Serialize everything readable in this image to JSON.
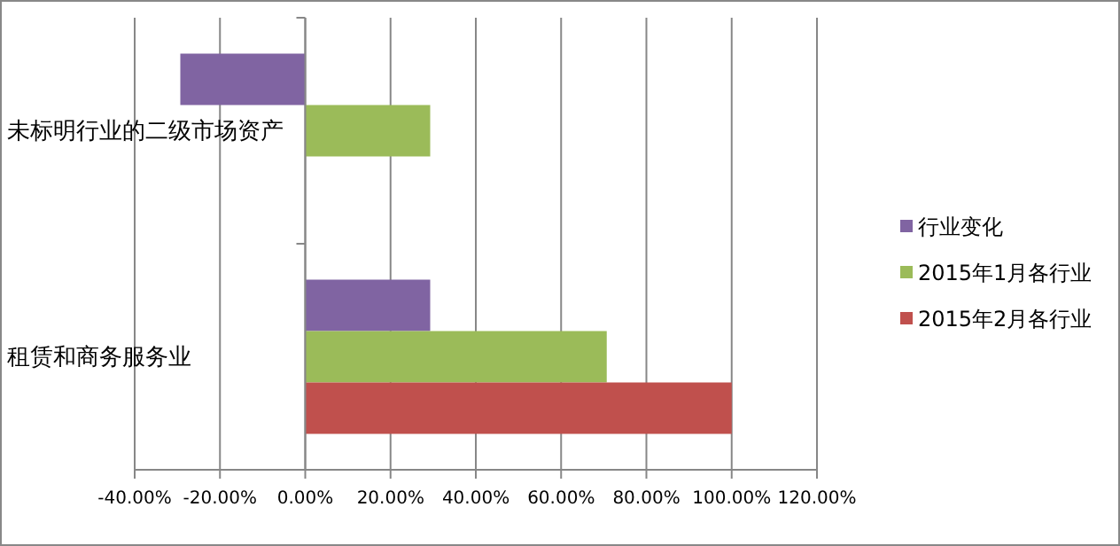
{
  "chart_data": {
    "type": "bar",
    "orientation": "horizontal",
    "categories": [
      "未标明行业的二级市场资产",
      "租赁和商务服务业"
    ],
    "series": [
      {
        "name": "行业变化",
        "color": "#8064a2",
        "values": [
          -29.3,
          29.3
        ]
      },
      {
        "name": "2015年1月各行业",
        "color": "#9bbb59",
        "values": [
          29.3,
          70.7
        ]
      },
      {
        "name": "2015年2月各行业",
        "color": "#c0504d",
        "values": [
          null,
          100
        ]
      }
    ],
    "xlim": [
      -40,
      120
    ],
    "xticks": [
      {
        "value": -40,
        "label": "-40.00%"
      },
      {
        "value": -20,
        "label": "-20.00%"
      },
      {
        "value": 0,
        "label": "0.00%"
      },
      {
        "value": 20,
        "label": "20.00%"
      },
      {
        "value": 40,
        "label": "40.00%"
      },
      {
        "value": 60,
        "label": "60.00%"
      },
      {
        "value": 80,
        "label": "80.00%"
      },
      {
        "value": 100,
        "label": "100.00%"
      },
      {
        "value": 120,
        "label": "120.00%"
      }
    ],
    "grid": "x",
    "legend": "right"
  }
}
